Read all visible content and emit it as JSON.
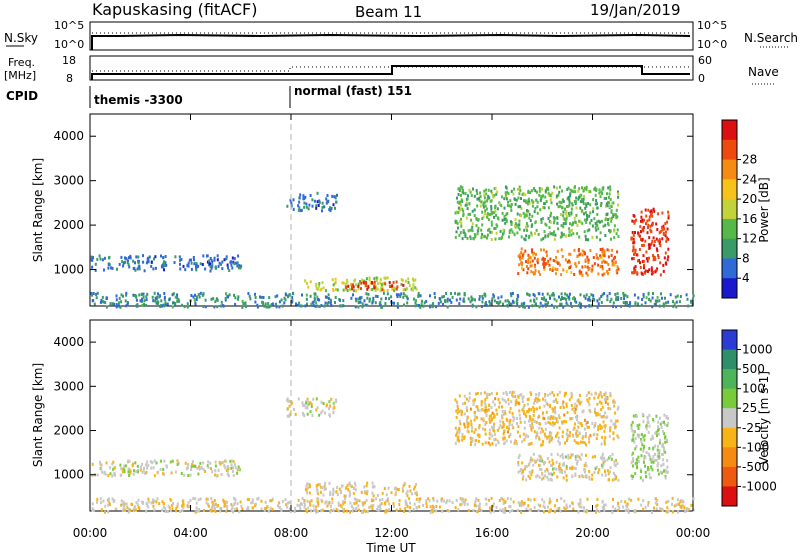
{
  "header": {
    "station": "Kapuskasing (fitACF)",
    "beam": "Beam 11",
    "date": "19/Jan/2019"
  },
  "left_labels": {
    "nsky": "N.Sky",
    "freq_line1": "Freq.",
    "freq_line2": "[MHz]",
    "cpid": "CPID"
  },
  "right_labels": {
    "nsearch": "N.Search",
    "nave": "Nave"
  },
  "cpid_segments": [
    {
      "text": "themis -3300",
      "start_hour": 0
    },
    {
      "text": "normal (fast) 151",
      "start_hour": 8
    }
  ],
  "nsky_axis": {
    "top_label": "10^5",
    "bottom_label": "10^0"
  },
  "freq_axis": {
    "ticks": [
      "18",
      "8"
    ]
  },
  "nave_axis": {
    "ticks": [
      "60",
      "0"
    ]
  },
  "x_axis": {
    "title": "Time UT",
    "ticks": [
      "00:00",
      "04:00",
      "08:00",
      "12:00",
      "16:00",
      "20:00",
      "00:00"
    ]
  },
  "colors": {
    "frame": "#000000",
    "dashed_marker": "#b4b4b4"
  },
  "chart_data": [
    {
      "type": "heatmap",
      "name": "power",
      "ylabel": "Slant Range [km]",
      "y_ticks": [
        "1000",
        "2000",
        "3000",
        "4000"
      ],
      "ylim": [
        180,
        4500
      ],
      "xlim_hours": [
        0,
        24
      ],
      "colorbar": {
        "label": "Power [dB]",
        "ticks": [
          "4",
          "8",
          "12",
          "16",
          "20",
          "24",
          "28"
        ],
        "range": [
          0,
          32
        ],
        "colors": [
          "#1a1acc",
          "#2f6ad6",
          "#3a9a68",
          "#56b848",
          "#c2d23a",
          "#f7c21a",
          "#f78a12",
          "#ee4a10",
          "#dc1010"
        ]
      },
      "regions": [
        {
          "t0": 0.0,
          "t1": 6.0,
          "r0": 1000,
          "r1": 1350,
          "value": 6
        },
        {
          "t0": 0.0,
          "t1": 24.0,
          "r0": 180,
          "r1": 500,
          "value": 8
        },
        {
          "t0": 7.8,
          "t1": 9.8,
          "r0": 2350,
          "r1": 2750,
          "value": 6
        },
        {
          "t0": 8.5,
          "t1": 13.0,
          "r0": 550,
          "r1": 850,
          "value": 16
        },
        {
          "t0": 10.0,
          "t1": 12.5,
          "r0": 580,
          "r1": 760,
          "value": 28
        },
        {
          "t0": 14.5,
          "t1": 21.0,
          "r0": 1700,
          "r1": 2900,
          "value": 12
        },
        {
          "t0": 17.0,
          "t1": 21.0,
          "r0": 900,
          "r1": 1500,
          "value": 24
        },
        {
          "t0": 21.5,
          "t1": 23.0,
          "r0": 900,
          "r1": 2400,
          "value": 28
        }
      ]
    },
    {
      "type": "heatmap",
      "name": "velocity",
      "ylabel": "Slant Range [km]",
      "y_ticks": [
        "1000",
        "2000",
        "3000",
        "4000"
      ],
      "ylim": [
        180,
        4500
      ],
      "xlim_hours": [
        0,
        24
      ],
      "colorbar": {
        "label": "Velocity [m s-1]",
        "ticks": [
          "1000",
          "500",
          "100",
          "25",
          "-25",
          "-100",
          "-500",
          "-1000"
        ],
        "range": [
          -1200,
          1200
        ],
        "colors": [
          "#2a3cd4",
          "#2f8f6a",
          "#4fb35a",
          "#78cc3c",
          "#c8c8c8",
          "#f7b318",
          "#f78a12",
          "#ee5a10",
          "#dc1010"
        ]
      },
      "regions": [
        {
          "t0": 0.0,
          "t1": 6.0,
          "r0": 1000,
          "r1": 1350,
          "value": 0
        },
        {
          "t0": 0.0,
          "t1": 24.0,
          "r0": 180,
          "r1": 500,
          "value": -100
        },
        {
          "t0": 7.8,
          "t1": 9.8,
          "r0": 2350,
          "r1": 2750,
          "value": 0
        },
        {
          "t0": 8.5,
          "t1": 13.0,
          "r0": 550,
          "r1": 850,
          "value": -80
        },
        {
          "t0": 14.5,
          "t1": 21.0,
          "r0": 1700,
          "r1": 2900,
          "value": -200
        },
        {
          "t0": 17.0,
          "t1": 21.0,
          "r0": 900,
          "r1": 1500,
          "value": -60
        },
        {
          "t0": 21.5,
          "t1": 23.0,
          "r0": 900,
          "r1": 2400,
          "value": 100
        }
      ]
    }
  ]
}
